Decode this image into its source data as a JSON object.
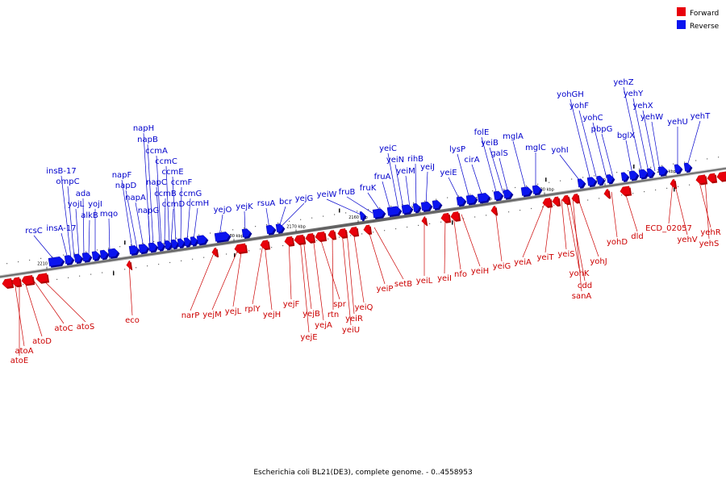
{
  "colors": {
    "forward": "#e8000b",
    "forward_dark": "#b00000",
    "reverse": "#0a14ef",
    "reverse_dark": "#00009a",
    "forward_label": "#cc0000",
    "reverse_label": "#0000cc",
    "backbone": "#777777"
  },
  "legend": [
    {
      "label": "Forward",
      "color": "#e8000b"
    },
    {
      "label": "Reverse",
      "color": "#0a14ef"
    }
  ],
  "caption": "Escherichia coli BL21(DE3), complete genome. - 0..4558953",
  "scale_ticks": [
    "2210 kbp",
    "2200 kbp",
    "2190 kbp",
    "2180 kbp",
    "2170 kbp",
    "2160 kbp",
    "2150 kbp",
    "2140 kbp",
    "2130 kbp",
    "2120 kbp",
    "2110 kbp"
  ],
  "reverse_genes": [
    "rcsC",
    "insA-17",
    "insB-17",
    "ompC",
    "yojL",
    "ada",
    "alkB",
    "yojI",
    "mqo",
    "napF",
    "napD",
    "napA",
    "napG",
    "napH",
    "napB",
    "napC",
    "ccmA",
    "ccmB",
    "ccmC",
    "ccmD",
    "ccmE",
    "ccmF",
    "ccmG",
    "ccmH",
    "yejO",
    "yejK",
    "rsuA",
    "bcr",
    "yejG",
    "yeiW",
    "fruB",
    "fruK",
    "fruA",
    "yeiC",
    "yeiN",
    "yeiM",
    "rihB",
    "yeiJ",
    "yeiE",
    "lysP",
    "cirA",
    "folE",
    "yeiB",
    "galS",
    "mglA",
    "mglC",
    "yohI",
    "yohGH",
    "yohF",
    "yohC",
    "pbpG",
    "bglX",
    "yehZ",
    "yehY",
    "yehX",
    "yehW",
    "yehU",
    "yehT"
  ],
  "forward_genes": [
    "atoA",
    "atoE",
    "atoD",
    "atoC",
    "atoS",
    "eco",
    "narP",
    "yejM",
    "yejL",
    "rplY",
    "yejH",
    "yejF",
    "yejE",
    "yejB",
    "yejA",
    "spr",
    "rtn",
    "yeiU",
    "yeiR",
    "yeiQ",
    "yeiP",
    "setB",
    "yeiL",
    "yeiI",
    "nfo",
    "yeiH",
    "yeiG",
    "yeiA",
    "yeiT",
    "yeiS",
    "yohK",
    "cdd",
    "sanA",
    "yohJ",
    "yohD",
    "dld",
    "ECD_02057",
    "yehV",
    "yehR",
    "yehS"
  ]
}
